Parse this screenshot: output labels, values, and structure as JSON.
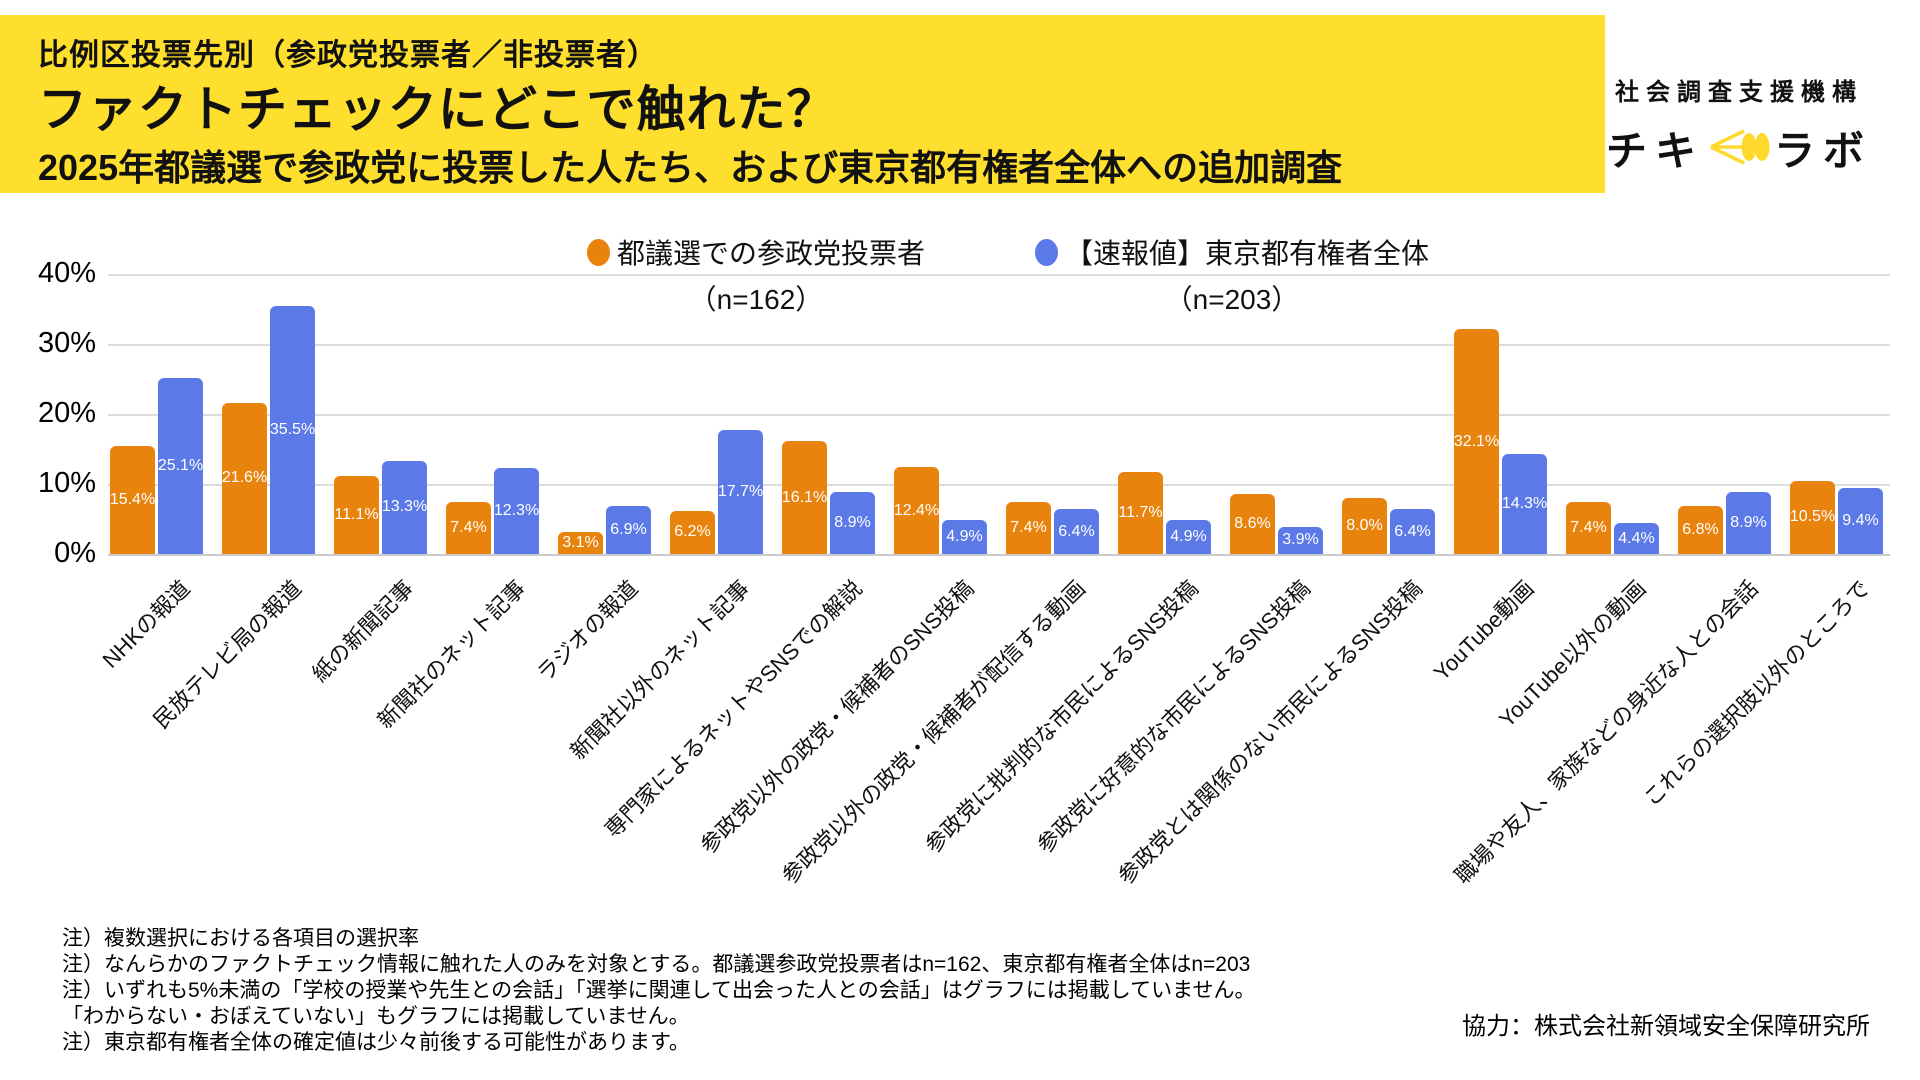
{
  "banner": {
    "line1": "比例区投票先別（参政党投票者／非投票者）",
    "line2": "ファクトチェックにどこで触れた？",
    "line3": "2025年都議選で参政党に投票した人たち、および東京都有権者全体への追加調査",
    "bg_color": "#FFDF2E"
  },
  "logo": {
    "org": "社会調査支援機構",
    "name_left": "チキ",
    "name_right": "ラボ",
    "icon_color": "#FFD92B"
  },
  "legend": {
    "series1": {
      "label": "都議選での参政党投票者",
      "n": "（n=162）",
      "color": "#E8830D"
    },
    "series2": {
      "label": "【速報値】東京都有権者全体",
      "n": "（n=203）",
      "color": "#5B7AE8"
    }
  },
  "chart_data": {
    "type": "bar",
    "title": "ファクトチェックにどこで触れた？",
    "xlabel": "",
    "ylabel": "",
    "ylim": [
      0,
      40
    ],
    "yticks": [
      0,
      10,
      20,
      30,
      40
    ],
    "value_suffix": "%",
    "grid": true,
    "legend_position": "top",
    "grid_color": "#DCDCDC",
    "categories": [
      "NHKの報道",
      "民放テレビ局の報道",
      "紙の新聞記事",
      "新聞社のネット記事",
      "ラジオの報道",
      "新聞社以外のネット記事",
      "専門家によるネットやSNSでの解説",
      "参政党以外の政党・候補者のSNS投稿",
      "参政党以外の政党・候補者が配信する動画",
      "参政党に批判的な市民によるSNS投稿",
      "参政党に好意的な市民によるSNS投稿",
      "参政党とは関係のない市民によるSNS投稿",
      "YouTube動画",
      "YouTube以外の動画",
      "職場や友人、家族などの身近な人との会話",
      "これらの選択肢以外のところで"
    ],
    "series": [
      {
        "name": "都議選での参政党投票者（n=162）",
        "color": "#E8830D",
        "values": [
          15.4,
          21.6,
          11.1,
          7.4,
          3.1,
          6.2,
          16.1,
          12.4,
          7.4,
          11.7,
          8.6,
          8.0,
          32.1,
          7.4,
          6.8,
          10.5
        ]
      },
      {
        "name": "【速報値】東京都有権者全体（n=203）",
        "color": "#5B7AE8",
        "values": [
          25.1,
          35.5,
          13.3,
          12.3,
          6.9,
          17.7,
          8.9,
          4.9,
          6.4,
          4.9,
          3.9,
          6.4,
          14.3,
          4.4,
          8.9,
          9.4
        ]
      }
    ]
  },
  "footnotes": [
    "注）複数選択における各項目の選択率",
    "注）なんらかのファクトチェック情報に触れた人のみを対象とする。都議選参政党投票者はn=162、東京都有権者全体はn=203",
    "注）いずれも5%未満の「学校の授業や先生との会話」「選挙に関連して出会った人との会話」はグラフには掲載していません。",
    "「わからない・おぼえていない」もグラフには掲載していません。",
    "注）東京都有権者全体の確定値は少々前後する可能性があります。"
  ],
  "credit": "協力：株式会社新領域安全保障研究所"
}
